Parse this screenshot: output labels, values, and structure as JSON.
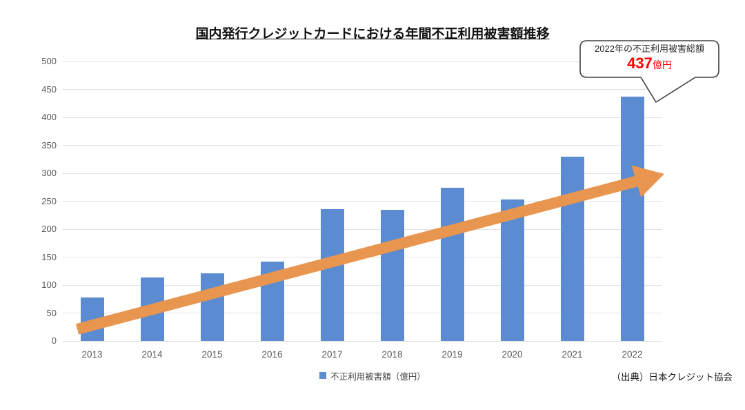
{
  "title": "国内発行クレジットカードにおける年間不正利用被害額推移",
  "chart_data": {
    "type": "bar",
    "title": "国内発行クレジットカードにおける年間不正利用被害額推移",
    "categories": [
      "2013",
      "2014",
      "2015",
      "2016",
      "2017",
      "2018",
      "2019",
      "2020",
      "2021",
      "2022"
    ],
    "series": [
      {
        "name": "不正利用被害額（億円）",
        "values": [
          78,
          114,
          121,
          142,
          236,
          235,
          274,
          253,
          330,
          437
        ],
        "color": "#5b8bd0"
      }
    ],
    "xlabel": "",
    "ylabel": "",
    "ylim": [
      0,
      500
    ],
    "ytick_step": 50,
    "grid": true,
    "legend_position": "bottom",
    "annotations": {
      "trend_arrow": {
        "shape": "upward-arrow",
        "color": "#e8964f",
        "from_value": 20,
        "to_value": 300
      },
      "callout": {
        "line1": "2022年の不正利用被害総額",
        "value": "437",
        "unit": "億円",
        "value_color": "#ff0000",
        "points_to": "2022"
      }
    }
  },
  "legend": {
    "label": "不正利用被害額（億円）",
    "marker_color": "#5b8bd0"
  },
  "source": "（出典）日本クレジット協会",
  "colors": {
    "bar": "#5b8bd0",
    "arrow": "#e8964f",
    "grid": "#e2e2e2",
    "axis_text": "#595959",
    "callout_border": "#404040",
    "highlight": "#ff0000"
  }
}
